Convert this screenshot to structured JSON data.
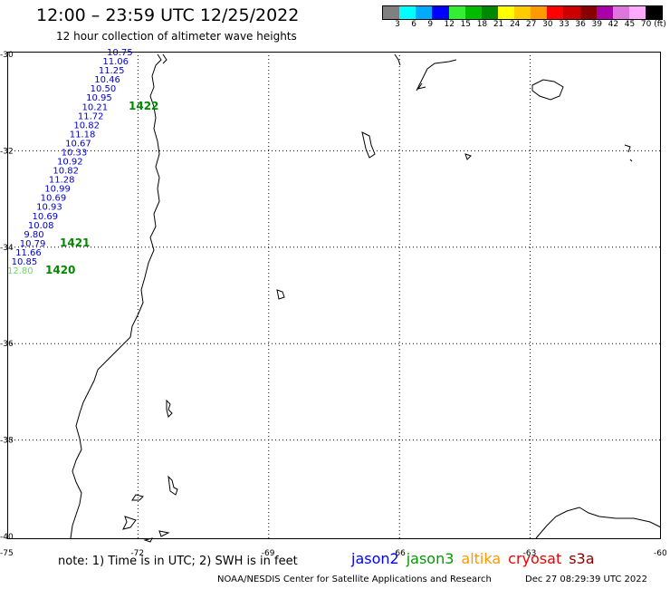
{
  "header": {
    "title": "12:00 – 23:59 UTC 12/25/2022",
    "subtitle": "12 hour collection of altimeter wave heights"
  },
  "colorbar": {
    "colors": [
      "#808080",
      "#00ffff",
      "#00aaff",
      "#0000ff",
      "#33ee33",
      "#00bb00",
      "#008800",
      "#ffff00",
      "#ffcc00",
      "#ff9900",
      "#ff0000",
      "#cc0000",
      "#880000",
      "#aa00aa",
      "#dd77dd",
      "#ffaaff",
      "#000000"
    ],
    "labels": [
      "3",
      "6",
      "9",
      "12",
      "15",
      "18",
      "21",
      "24",
      "27",
      "30",
      "33",
      "36",
      "39",
      "42",
      "45",
      "70 (ft)"
    ]
  },
  "axes": {
    "lat_labels": [
      "-30",
      "-32",
      "-34",
      "-36",
      "-38",
      "-40"
    ],
    "lon_labels": [
      "-75",
      "-72",
      "-69",
      "-66",
      "-63",
      "-60"
    ]
  },
  "observations": [
    {
      "value": "10.75",
      "color": "#0000cc"
    },
    {
      "value": "11.06",
      "color": "#0000cc"
    },
    {
      "value": "11.25",
      "color": "#0000cc"
    },
    {
      "value": "10.46",
      "color": "#0000cc"
    },
    {
      "value": "10.50",
      "color": "#0000cc"
    },
    {
      "value": "10.95",
      "color": "#0000cc"
    },
    {
      "value": "10.21",
      "color": "#0000cc"
    },
    {
      "value": "11.72",
      "color": "#0000cc"
    },
    {
      "value": "10.82",
      "color": "#0000cc"
    },
    {
      "value": "11.18",
      "color": "#0000cc"
    },
    {
      "value": "10.67",
      "color": "#0000cc"
    },
    {
      "value": "10.33",
      "color": "#0000cc"
    },
    {
      "value": "10.92",
      "color": "#0000cc"
    },
    {
      "value": "10.82",
      "color": "#0000cc"
    },
    {
      "value": "11.28",
      "color": "#0000cc"
    },
    {
      "value": "10.99",
      "color": "#0000cc"
    },
    {
      "value": "10.69",
      "color": "#0000cc"
    },
    {
      "value": "10.93",
      "color": "#0000cc"
    },
    {
      "value": "10.69",
      "color": "#0000cc"
    },
    {
      "value": "10.08",
      "color": "#0000cc"
    },
    {
      "value": "9.80",
      "color": "#0000cc"
    },
    {
      "value": "10.79",
      "color": "#0000cc"
    },
    {
      "value": "11.66",
      "color": "#0000cc"
    },
    {
      "value": "10.85",
      "color": "#0000cc"
    },
    {
      "value": "12.80",
      "color": "#66dd66"
    }
  ],
  "time_labels": [
    {
      "text": "1422",
      "color": "#008800"
    },
    {
      "text": "1421",
      "color": "#008800"
    },
    {
      "text": "1420",
      "color": "#008800"
    }
  ],
  "footer": {
    "note": "note:  1) Time is in UTC;  2) SWH is in feet",
    "satellites": [
      {
        "name": "jason2",
        "color": "#0000ff"
      },
      {
        "name": "jason3",
        "color": "#009900"
      },
      {
        "name": "altika",
        "color": "#ff9900"
      },
      {
        "name": "cryosat",
        "color": "#ee0000"
      },
      {
        "name": "s3a",
        "color": "#880000"
      }
    ],
    "credit": "NOAA/NESDIS Center for Satellite Applications and Research",
    "timestamp": "Dec 27 08:29:39 UTC 2022"
  }
}
